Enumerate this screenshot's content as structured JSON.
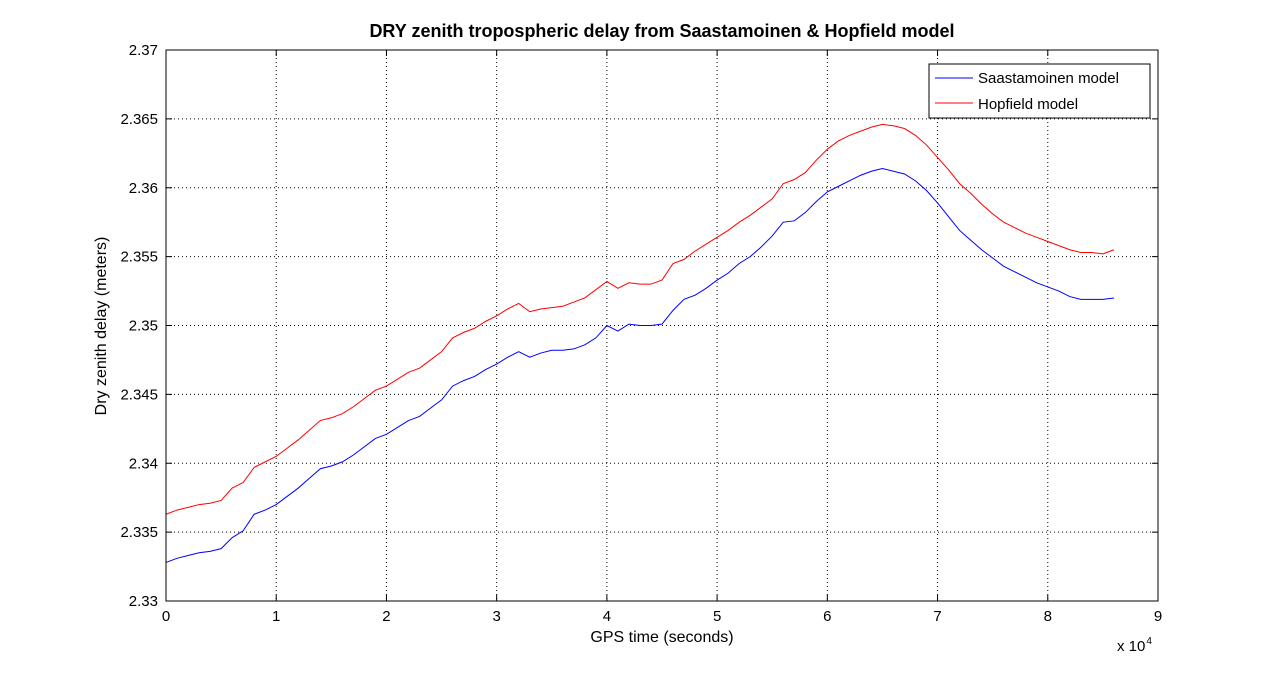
{
  "chart_data": {
    "type": "line",
    "title": "DRY zenith tropospheric delay from Saastamoinen & Hopfield model",
    "xlabel": "GPS time (seconds)",
    "ylabel": "Dry zenith delay (meters)",
    "x_multiplier_label": "x 10",
    "x_multiplier_exponent": "4",
    "xlim": [
      0,
      90000
    ],
    "ylim": [
      2.33,
      2.37
    ],
    "x_ticks": [
      0,
      10000,
      20000,
      30000,
      40000,
      50000,
      60000,
      70000,
      80000,
      90000
    ],
    "x_tick_labels": [
      "0",
      "1",
      "2",
      "3",
      "4",
      "5",
      "6",
      "7",
      "8",
      "9"
    ],
    "y_ticks": [
      2.33,
      2.335,
      2.34,
      2.345,
      2.35,
      2.355,
      2.36,
      2.365,
      2.37
    ],
    "y_tick_labels": [
      "2.33",
      "2.335",
      "2.34",
      "2.345",
      "2.35",
      "2.355",
      "2.36",
      "2.365",
      "2.37"
    ],
    "grid": true,
    "legend_position": "top-right",
    "x": [
      0,
      1000,
      2000,
      3000,
      4000,
      5000,
      6000,
      7000,
      8000,
      9000,
      10000,
      11000,
      12000,
      13000,
      14000,
      15000,
      16000,
      17000,
      18000,
      19000,
      20000,
      21000,
      22000,
      23000,
      24000,
      25000,
      26000,
      27000,
      28000,
      29000,
      30000,
      31000,
      32000,
      33000,
      34000,
      35000,
      36000,
      37000,
      38000,
      39000,
      40000,
      41000,
      42000,
      43000,
      44000,
      45000,
      46000,
      47000,
      48000,
      49000,
      50000,
      51000,
      52000,
      53000,
      54000,
      55000,
      56000,
      57000,
      58000,
      59000,
      60000,
      61000,
      62000,
      63000,
      64000,
      65000,
      66000,
      67000,
      68000,
      69000,
      70000,
      71000,
      72000,
      73000,
      74000,
      75000,
      76000,
      77000,
      78000,
      79000,
      80000,
      81000,
      82000,
      83000,
      84000,
      85000,
      86000
    ],
    "series": [
      {
        "name": "Saastamoinen model",
        "color": "#0000ff",
        "values": [
          2.3328,
          2.3331,
          2.3333,
          2.3335,
          2.3336,
          2.3338,
          2.3346,
          2.3351,
          2.3363,
          2.3366,
          2.337,
          2.3376,
          2.3382,
          2.3389,
          2.3396,
          2.3398,
          2.3401,
          2.3406,
          2.3412,
          2.3418,
          2.3421,
          2.3426,
          2.3431,
          2.3434,
          2.344,
          2.3446,
          2.3456,
          2.346,
          2.3463,
          2.3468,
          2.3472,
          2.3477,
          2.3481,
          2.3477,
          2.348,
          2.3482,
          2.3482,
          2.3483,
          2.3486,
          2.3491,
          2.35,
          2.3496,
          2.3501,
          2.35,
          2.35,
          2.3501,
          2.3511,
          2.3519,
          2.3522,
          2.3527,
          2.3533,
          2.3538,
          2.3545,
          2.355,
          2.3557,
          2.3565,
          2.3575,
          2.3576,
          2.3582,
          2.359,
          2.3597,
          2.3601,
          2.3605,
          2.3609,
          2.3612,
          2.3614,
          2.3612,
          2.361,
          2.3605,
          2.3598,
          2.3589,
          2.3579,
          2.3569,
          2.3562,
          2.3555,
          2.3549,
          2.3543,
          2.3539,
          2.3535,
          2.3531,
          2.3528,
          2.3525,
          2.3521,
          2.3519,
          2.3519,
          2.3519,
          2.352
        ]
      },
      {
        "name": "Hopfield model",
        "color": "#ff0000",
        "values": [
          2.3363,
          2.3366,
          2.3368,
          2.337,
          2.3371,
          2.3373,
          2.3382,
          2.3386,
          2.3397,
          2.3401,
          2.3405,
          2.3411,
          2.3417,
          2.3424,
          2.3431,
          2.3433,
          2.3436,
          2.3441,
          2.3447,
          2.3453,
          2.3456,
          2.3461,
          2.3466,
          2.3469,
          2.3475,
          2.3481,
          2.3491,
          2.3495,
          2.3498,
          2.3503,
          2.3507,
          2.3512,
          2.3516,
          2.351,
          2.3512,
          2.3513,
          2.3514,
          2.3517,
          2.352,
          2.3526,
          2.3532,
          2.3527,
          2.3531,
          2.353,
          2.353,
          2.3533,
          2.3545,
          2.3548,
          2.3554,
          2.3559,
          2.3564,
          2.3569,
          2.3575,
          2.358,
          2.3586,
          2.3592,
          2.3603,
          2.3606,
          2.3611,
          2.362,
          2.3628,
          2.3634,
          2.3638,
          2.3641,
          2.3644,
          2.3646,
          2.3645,
          2.3643,
          2.3638,
          2.3631,
          2.3622,
          2.3613,
          2.3603,
          2.3596,
          2.3588,
          2.3581,
          2.3575,
          2.3571,
          2.3567,
          2.3564,
          2.3561,
          2.3558,
          2.3555,
          2.3553,
          2.3553,
          2.3552,
          2.3555
        ]
      }
    ]
  }
}
